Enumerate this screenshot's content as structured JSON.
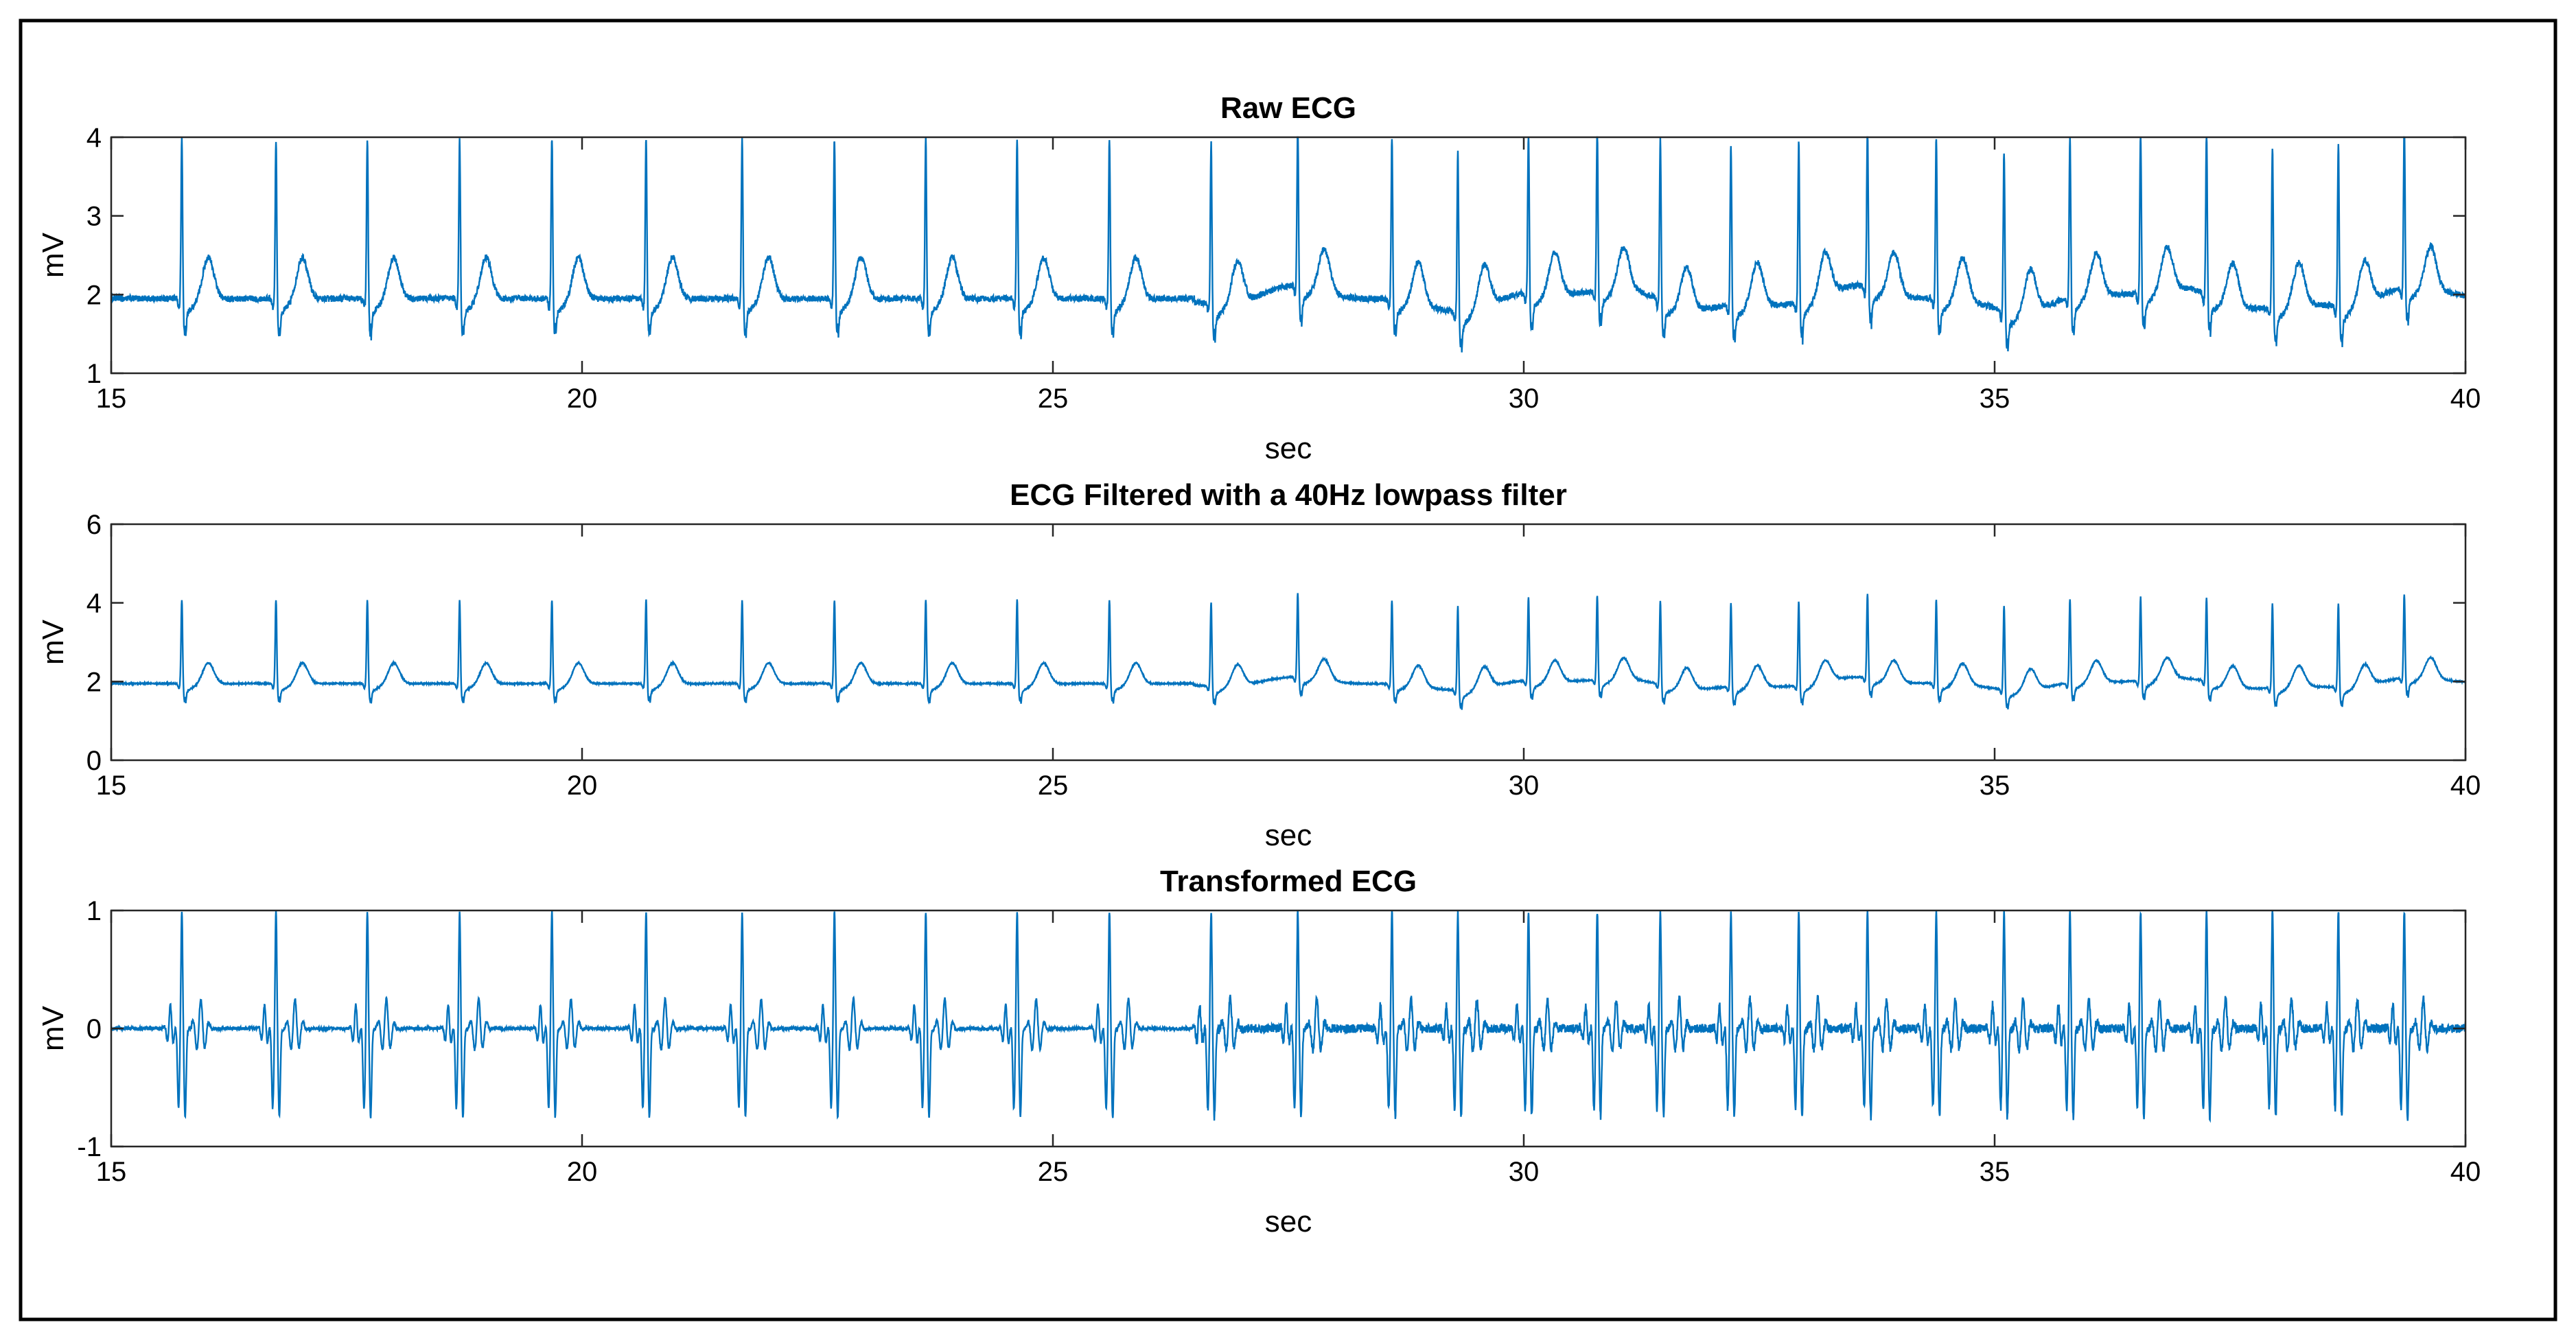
{
  "chart_data": [
    {
      "type": "line",
      "title": "Raw ECG",
      "xlabel": "sec",
      "ylabel": "mV",
      "xlim": [
        15,
        40
      ],
      "ylim": [
        1,
        4
      ],
      "xticks": [
        15,
        20,
        25,
        30,
        35,
        40
      ],
      "yticks": [
        1,
        2,
        3,
        4
      ],
      "grid": false,
      "color": "#0072BD",
      "series": [
        {
          "name": "raw",
          "signal": "ecg",
          "baseline": 1.95,
          "r_peak": 4.0,
          "s_trough": 1.5,
          "t_wave": 2.5,
          "noise": 0.04
        }
      ],
      "beat_times": [
        15.75,
        16.75,
        17.72,
        18.7,
        19.68,
        20.68,
        21.7,
        22.68,
        23.65,
        24.62,
        25.6,
        26.68,
        27.6,
        28.6,
        29.3,
        30.05,
        30.78,
        31.45,
        32.2,
        32.92,
        33.65,
        34.38,
        35.1,
        35.8,
        36.55,
        37.25,
        37.95,
        38.65,
        39.35
      ]
    },
    {
      "type": "line",
      "title": "ECG Filtered with a 40Hz lowpass filter",
      "xlabel": "sec",
      "ylabel": "mV",
      "xlim": [
        15,
        40
      ],
      "ylim": [
        0,
        6
      ],
      "xticks": [
        15,
        20,
        25,
        30,
        35,
        40
      ],
      "yticks": [
        0,
        2,
        4,
        6
      ],
      "grid": false,
      "color": "#0072BD",
      "series": [
        {
          "name": "filtered",
          "signal": "ecg",
          "baseline": 1.95,
          "r_peak": 4.1,
          "s_trough": 1.5,
          "t_wave": 2.5,
          "noise": 0.015
        }
      ],
      "beat_times": [
        15.75,
        16.75,
        17.72,
        18.7,
        19.68,
        20.68,
        21.7,
        22.68,
        23.65,
        24.62,
        25.6,
        26.68,
        27.6,
        28.6,
        29.3,
        30.05,
        30.78,
        31.45,
        32.2,
        32.92,
        33.65,
        34.38,
        35.1,
        35.8,
        36.55,
        37.25,
        37.95,
        38.65,
        39.35
      ]
    },
    {
      "type": "line",
      "title": "Transformed ECG",
      "xlabel": "sec",
      "ylabel": "mV",
      "xlim": [
        15,
        40
      ],
      "ylim": [
        -1,
        1
      ],
      "xticks": [
        15,
        20,
        25,
        30,
        35,
        40
      ],
      "yticks": [
        -1,
        0,
        1
      ],
      "grid": false,
      "color": "#0072BD",
      "series": [
        {
          "name": "transformed",
          "signal": "wavelet",
          "baseline": 0,
          "r_peak": 1.0,
          "s_trough": -0.75,
          "t_wave": 0.25,
          "noise": 0.015
        }
      ],
      "beat_times": [
        15.75,
        16.75,
        17.72,
        18.7,
        19.68,
        20.68,
        21.7,
        22.68,
        23.65,
        24.62,
        25.6,
        26.68,
        27.6,
        28.6,
        29.3,
        30.05,
        30.78,
        31.45,
        32.2,
        32.92,
        33.65,
        34.38,
        35.1,
        35.8,
        36.55,
        37.25,
        37.95,
        38.65,
        39.35
      ]
    }
  ]
}
